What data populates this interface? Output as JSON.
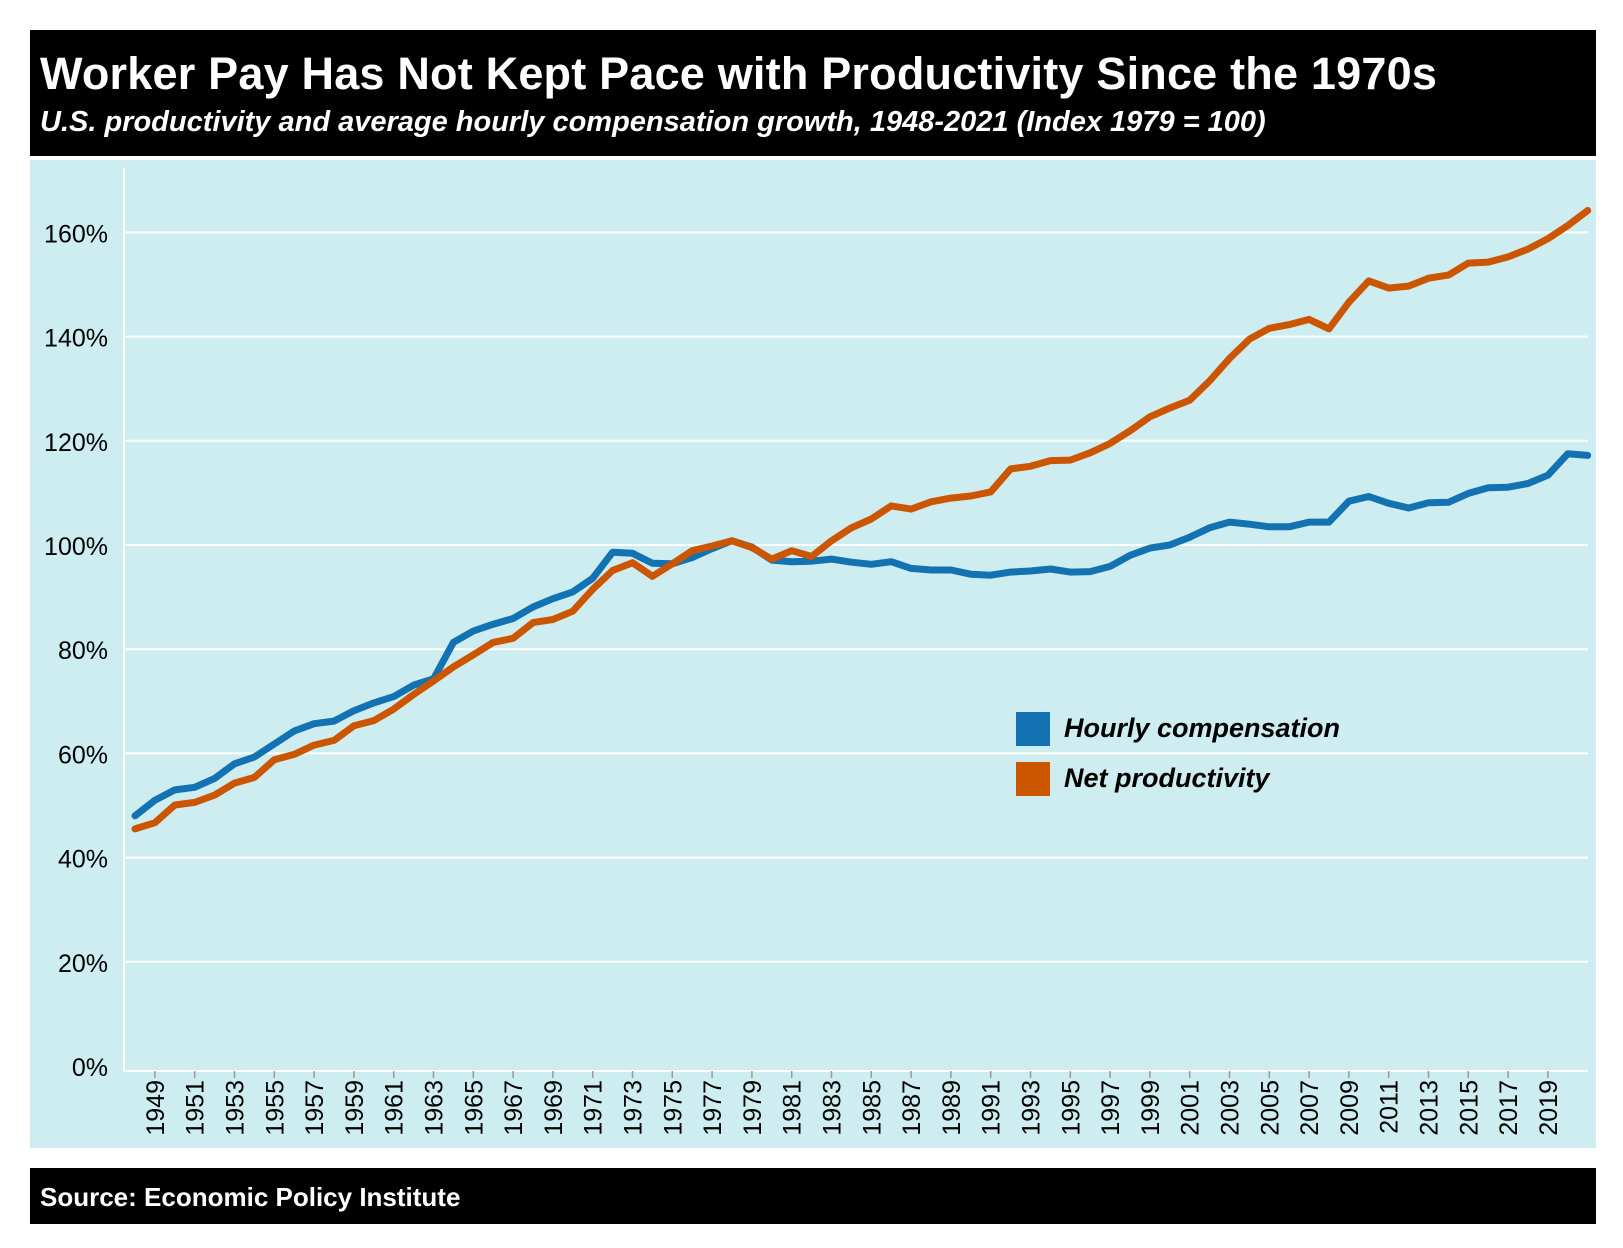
{
  "header": {
    "title": "Worker Pay Has Not Kept Pace with Productivity Since the 1970s",
    "subtitle": "U.S. productivity and average hourly compensation growth, 1948-2021 (Index 1979 = 100)"
  },
  "footer": {
    "source": "Source: Economic Policy Institute"
  },
  "colors": {
    "background": "#ceedf0",
    "hourly_compensation": "#1372b2",
    "net_productivity": "#cc5500",
    "gridline": "#ffffff",
    "header": "#000000"
  },
  "chart_data": {
    "type": "line",
    "title": "Worker Pay Has Not Kept Pace with Productivity Since the 1970s",
    "subtitle": "U.S. productivity and average hourly compensation growth, 1948-2021 (Index 1979 = 100)",
    "xlabel": "",
    "ylabel": "",
    "ylim": [
      0,
      170
    ],
    "yticks": [
      0,
      20,
      40,
      60,
      80,
      100,
      120,
      140,
      160
    ],
    "ytick_labels": [
      "0%",
      "20%",
      "40%",
      "60%",
      "80%",
      "100%",
      "120%",
      "140%",
      "160%"
    ],
    "xtick_labels": [
      "1949",
      "1951",
      "1953",
      "1955",
      "1957",
      "1959",
      "1961",
      "1963",
      "1965",
      "1967",
      "1969",
      "1971",
      "1973",
      "1975",
      "1977",
      "1979",
      "1981",
      "1983",
      "1985",
      "1987",
      "1989",
      "1991",
      "1993",
      "1995",
      "1997",
      "1999",
      "2001",
      "2003",
      "2005",
      "2007",
      "2009",
      "2011",
      "2013",
      "2015",
      "2017",
      "2019"
    ],
    "grid": "horizontal",
    "legend_position": "center-right",
    "x": [
      1948,
      1949,
      1950,
      1951,
      1952,
      1953,
      1954,
      1955,
      1956,
      1957,
      1958,
      1959,
      1960,
      1961,
      1962,
      1963,
      1964,
      1965,
      1966,
      1967,
      1968,
      1969,
      1970,
      1971,
      1972,
      1973,
      1974,
      1975,
      1976,
      1977,
      1978,
      1979,
      1980,
      1981,
      1982,
      1983,
      1984,
      1985,
      1986,
      1987,
      1988,
      1989,
      1990,
      1991,
      1992,
      1993,
      1994,
      1995,
      1996,
      1997,
      1998,
      1999,
      2000,
      2001,
      2002,
      2003,
      2004,
      2005,
      2006,
      2007,
      2008,
      2009,
      2010,
      2011,
      2012,
      2013,
      2014,
      2015,
      2016,
      2017,
      2018,
      2019,
      2020,
      2021
    ],
    "series": [
      {
        "name": "Hourly compensation",
        "color": "#1372b2",
        "values": [
          48,
          51,
          53,
          53.5,
          55.2,
          58,
          59.3,
          61.8,
          64.3,
          65.7,
          66.2,
          68.2,
          69.7,
          70.9,
          73.1,
          74.3,
          81.3,
          83.5,
          84.8,
          85.9,
          88.1,
          89.7,
          91,
          93.6,
          98.6,
          98.4,
          96.5,
          96.4,
          97.6,
          99.3,
          100.8,
          99.6,
          97.1,
          96.8,
          96.9,
          97.3,
          96.7,
          96.3,
          96.8,
          95.5,
          95.2,
          95.2,
          94.4,
          94.2,
          94.8,
          95,
          95.4,
          94.8,
          94.9,
          95.9,
          98,
          99.4,
          100,
          101.5,
          103.3,
          104.4,
          104,
          103.5,
          103.5,
          104.4,
          104.4,
          108.4,
          109.3,
          108,
          107.1,
          108.1,
          108.2,
          109.9,
          111,
          111.1,
          111.8,
          113.4,
          117.5,
          117.2
        ]
      },
      {
        "name": "Net productivity",
        "color": "#cc5500",
        "values": [
          45.5,
          46.7,
          50.1,
          50.6,
          52,
          54.3,
          55.4,
          58.8,
          59.8,
          61.6,
          62.5,
          65.3,
          66.3,
          68.5,
          71.3,
          73.9,
          76.6,
          78.9,
          81.3,
          82.1,
          85.1,
          85.7,
          87.3,
          91.5,
          95.1,
          96.6,
          94,
          96.4,
          98.9,
          99.8,
          100.8,
          99.5,
          97.3,
          98.9,
          97.8,
          100.8,
          103.3,
          105,
          107.5,
          106.9,
          108.3,
          109,
          109.4,
          110.2,
          114.6,
          115.1,
          116.2,
          116.3,
          117.7,
          119.5,
          121.9,
          124.6,
          126.3,
          127.8,
          131.5,
          135.8,
          139.5,
          141.6,
          142.3,
          143.3,
          141.5,
          146.6,
          150.7,
          149.3,
          149.7,
          151.2,
          151.8,
          154.1,
          154.3,
          155.3,
          156.8,
          158.8,
          161.3,
          164.2
        ]
      }
    ]
  }
}
